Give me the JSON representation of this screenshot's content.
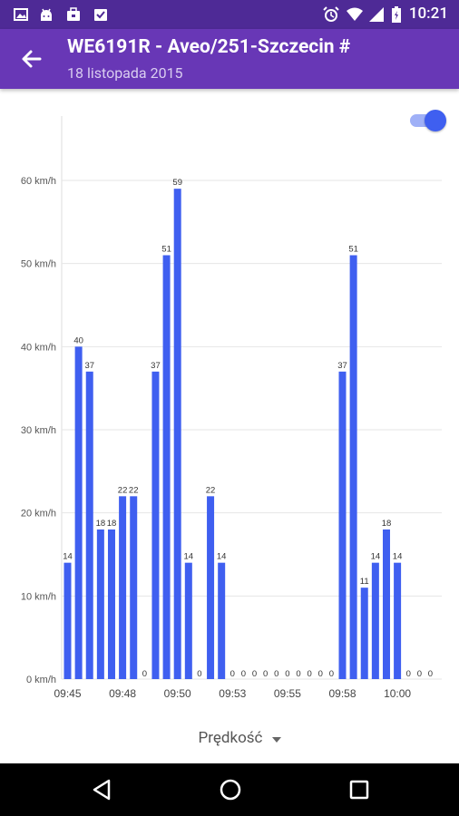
{
  "status_bar": {
    "time": "10:21",
    "icons_left": [
      "image-icon",
      "android-icon",
      "briefcase-icon",
      "inbox-icon"
    ],
    "icons_right": [
      "alarm-icon",
      "wifi-icon",
      "signal-icon",
      "battery-icon"
    ]
  },
  "app_bar": {
    "title": "WE6191R - Aveo/251-Szczecin #",
    "subtitle": "18 listopada 2015"
  },
  "toggle": {
    "on": true
  },
  "colors": {
    "status_bar": "#4e2a96",
    "app_bar": "#6837b6",
    "bar": "#3f5ff0"
  },
  "series_dropdown": {
    "label": "Prędkość"
  },
  "chart_data": {
    "type": "bar",
    "ylim": [
      0,
      60
    ],
    "yticks": [
      "0 km/h",
      "10 km/h",
      "20 km/h",
      "30 km/h",
      "40 km/h",
      "50 km/h",
      "60 km/h"
    ],
    "ytick_values": [
      0,
      10,
      20,
      30,
      40,
      50,
      60
    ],
    "xticks": [
      "09:45",
      "09:48",
      "09:50",
      "09:53",
      "09:55",
      "09:58",
      "10:00"
    ],
    "values": [
      14,
      40,
      37,
      18,
      18,
      22,
      22,
      0,
      37,
      51,
      59,
      14,
      0,
      22,
      14,
      0,
      0,
      0,
      0,
      0,
      0,
      0,
      0,
      0,
      0,
      37,
      51,
      11,
      14,
      18,
      14,
      0,
      0,
      0
    ],
    "grid": true
  }
}
